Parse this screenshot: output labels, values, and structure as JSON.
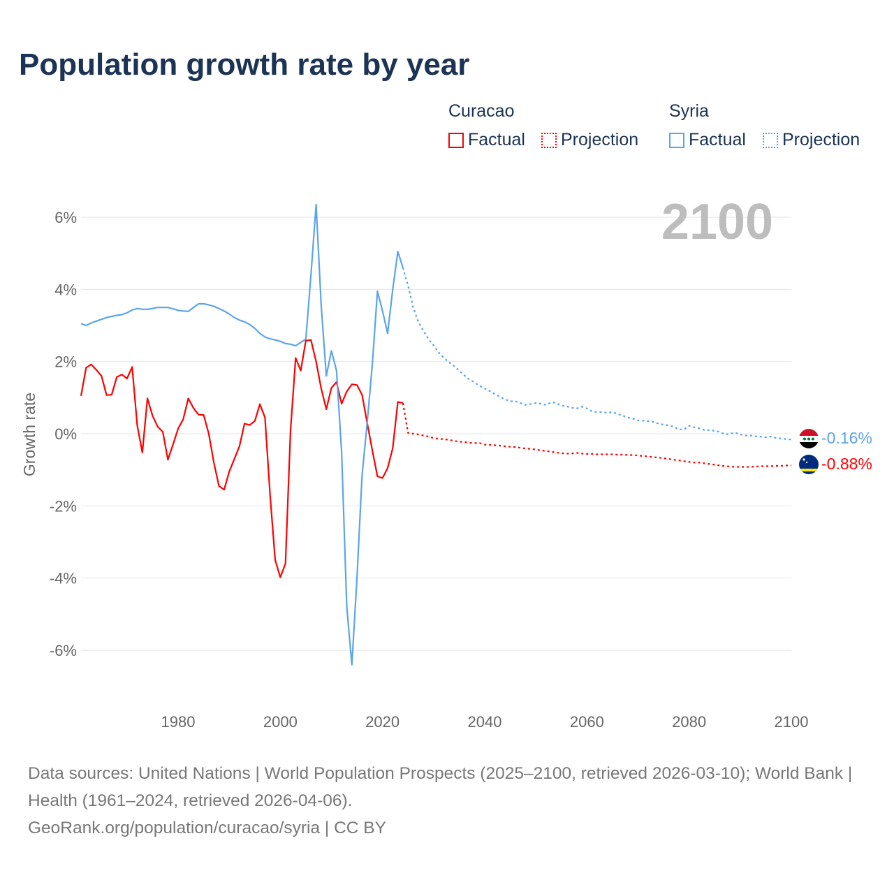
{
  "title": "Population growth rate by year",
  "legend": {
    "groups": [
      {
        "name": "Curacao",
        "factual": "Factual",
        "projection": "Projection",
        "color": "#ff0000"
      },
      {
        "name": "Syria",
        "factual": "Factual",
        "projection": "Projection",
        "color": "#5ba4ea"
      }
    ]
  },
  "year_display": "2100",
  "end_labels": {
    "syria": "-0.16%",
    "curacao": "-0.88%"
  },
  "footer": {
    "sources": "Data sources: United Nations | World Population Prospects (2025–2100, retrieved 2026-03-10); World Bank | Health (1961–2024, retrieved 2026-04-06).",
    "credit": "GeoRank.org/population/curacao/syria | CC BY"
  },
  "chart_data": {
    "type": "line",
    "title": "Population growth rate by year",
    "xlabel": "",
    "ylabel": "Growth rate",
    "xlim": [
      1961,
      2100
    ],
    "ylim": [
      -7,
      7
    ],
    "xticks": [
      1980,
      2000,
      2020,
      2040,
      2060,
      2080,
      2100
    ],
    "xtick_labels": [
      "1980",
      "2000",
      "2020",
      "2040",
      "2060",
      "2080",
      "2100"
    ],
    "yticks": [
      6,
      4,
      2,
      0,
      -2,
      -4,
      -6
    ],
    "ytick_labels": [
      "6%",
      "4%",
      "2%",
      "0%",
      "-2%",
      "-4%",
      "-6%"
    ],
    "grid": true,
    "legend_position": "top-right",
    "series": [
      {
        "name": "Curacao Factual",
        "color": "#ff0000",
        "style": "solid",
        "x_start": 1961,
        "values": [
          1.05,
          1.83,
          1.92,
          1.77,
          1.6,
          1.07,
          1.08,
          1.57,
          1.64,
          1.53,
          1.85,
          0.23,
          -0.52,
          0.98,
          0.5,
          0.2,
          0.05,
          -0.72,
          -0.3,
          0.14,
          0.4,
          0.98,
          0.71,
          0.53,
          0.52,
          0.0,
          -0.8,
          -1.45,
          -1.55,
          -1.05,
          -0.7,
          -0.35,
          0.28,
          0.24,
          0.35,
          0.82,
          0.45,
          -1.7,
          -3.5,
          -3.98,
          -3.6,
          0.1,
          2.1,
          1.75,
          2.58,
          2.6,
          2.0,
          1.25,
          0.68,
          1.27,
          1.43,
          0.83,
          1.17,
          1.37,
          1.35,
          1.08,
          0.3,
          -0.45,
          -1.18,
          -1.23,
          -0.95,
          -0.4,
          0.88,
          0.85
        ]
      },
      {
        "name": "Curacao Projection",
        "color": "#ff0000",
        "style": "dotted",
        "x_start": 2024,
        "values": [
          0.85,
          0.02,
          0.0,
          -0.02,
          -0.05,
          -0.08,
          -0.12,
          -0.14,
          -0.15,
          -0.17,
          -0.2,
          -0.22,
          -0.23,
          -0.25,
          -0.26,
          -0.26,
          -0.3,
          -0.31,
          -0.32,
          -0.33,
          -0.35,
          -0.36,
          -0.37,
          -0.39,
          -0.41,
          -0.42,
          -0.44,
          -0.46,
          -0.48,
          -0.5,
          -0.52,
          -0.54,
          -0.55,
          -0.55,
          -0.53,
          -0.55,
          -0.56,
          -0.56,
          -0.57,
          -0.57,
          -0.57,
          -0.57,
          -0.58,
          -0.58,
          -0.59,
          -0.59,
          -0.6,
          -0.62,
          -0.63,
          -0.65,
          -0.66,
          -0.68,
          -0.7,
          -0.72,
          -0.74,
          -0.76,
          -0.78,
          -0.8,
          -0.8,
          -0.82,
          -0.84,
          -0.86,
          -0.88,
          -0.9,
          -0.91,
          -0.92,
          -0.92,
          -0.92,
          -0.92,
          -0.91,
          -0.9,
          -0.9,
          -0.9,
          -0.89,
          -0.89,
          -0.88,
          -0.88
        ]
      },
      {
        "name": "Syria Factual",
        "color": "#5ba4ea",
        "style": "solid",
        "x_start": 1961,
        "values": [
          3.05,
          3.0,
          3.07,
          3.12,
          3.17,
          3.22,
          3.25,
          3.28,
          3.3,
          3.35,
          3.43,
          3.47,
          3.45,
          3.45,
          3.47,
          3.5,
          3.5,
          3.5,
          3.46,
          3.42,
          3.4,
          3.39,
          3.5,
          3.6,
          3.6,
          3.57,
          3.53,
          3.47,
          3.4,
          3.32,
          3.22,
          3.15,
          3.1,
          3.03,
          2.92,
          2.78,
          2.68,
          2.63,
          2.6,
          2.56,
          2.5,
          2.48,
          2.44,
          2.53,
          2.62,
          4.4,
          6.35,
          3.55,
          1.6,
          2.3,
          1.75,
          -0.5,
          -4.8,
          -6.4,
          -4.0,
          -1.15,
          0.3,
          1.9,
          3.95,
          3.4,
          2.78,
          4.0,
          5.05,
          4.6
        ]
      },
      {
        "name": "Syria Projection",
        "color": "#5ba4ea",
        "style": "dotted",
        "x_start": 2024,
        "values": [
          4.6,
          4.1,
          3.5,
          3.1,
          2.85,
          2.62,
          2.45,
          2.25,
          2.1,
          1.98,
          1.88,
          1.75,
          1.62,
          1.5,
          1.42,
          1.33,
          1.25,
          1.18,
          1.1,
          1.02,
          0.95,
          0.9,
          0.9,
          0.85,
          0.8,
          0.82,
          0.85,
          0.83,
          0.8,
          0.87,
          0.85,
          0.78,
          0.76,
          0.72,
          0.7,
          0.75,
          0.7,
          0.62,
          0.6,
          0.6,
          0.58,
          0.6,
          0.55,
          0.5,
          0.45,
          0.42,
          0.37,
          0.36,
          0.35,
          0.33,
          0.28,
          0.25,
          0.23,
          0.2,
          0.12,
          0.12,
          0.22,
          0.18,
          0.15,
          0.1,
          0.1,
          0.08,
          0.05,
          -0.02,
          0.0,
          0.03,
          -0.02,
          -0.05,
          -0.05,
          -0.07,
          -0.08,
          -0.1,
          -0.08,
          -0.12,
          -0.13,
          -0.15,
          -0.16
        ]
      }
    ]
  }
}
